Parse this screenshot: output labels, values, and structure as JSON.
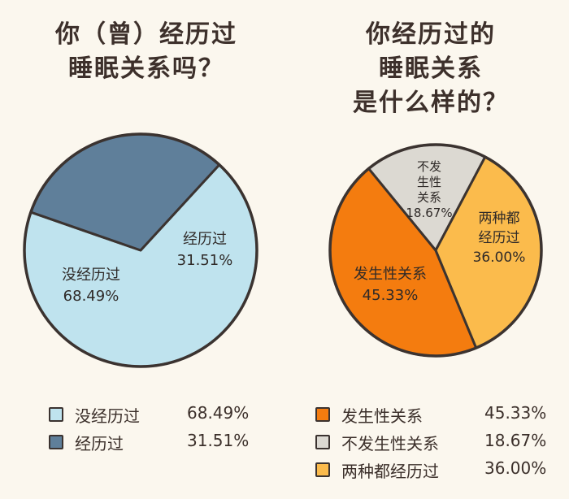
{
  "chart_data": [
    {
      "type": "pie",
      "title_lines": [
        "你（曾）经历过",
        "睡眠关系吗？"
      ],
      "slices": [
        {
          "label": "没经历过",
          "value": 68.49,
          "value_text": "68.49%",
          "color": "#bfe3ee"
        },
        {
          "label": "经历过",
          "value": 31.51,
          "value_text": "31.51%",
          "color": "#5f7f9a"
        }
      ]
    },
    {
      "type": "pie",
      "title_lines": [
        "你经历过的",
        "睡眠关系",
        "是什么样的？"
      ],
      "slices": [
        {
          "label": "发生性关系",
          "value": 45.33,
          "value_text": "45.33%",
          "color": "#f47c0f",
          "pie_label_lines": [
            "发生性关系",
            "45.33%"
          ]
        },
        {
          "label": "不发生性关系",
          "value": 18.67,
          "value_text": "18.67%",
          "color": "#dcd9d2",
          "pie_label_lines": [
            "不发",
            "生性",
            "关系",
            "18.67%"
          ]
        },
        {
          "label": "两种都经历过",
          "value": 36.0,
          "value_text": "36.00%",
          "color": "#fbbb4c",
          "pie_label_lines": [
            "两种都",
            "经历过",
            "36.00%"
          ]
        }
      ]
    }
  ],
  "pie1_labels": {
    "big": [
      "没经历过",
      "68.49%"
    ],
    "small": [
      "经历过",
      "31.51%"
    ]
  }
}
